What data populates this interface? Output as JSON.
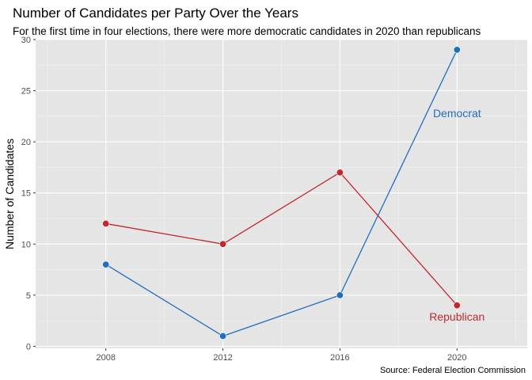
{
  "chart_data": {
    "type": "line",
    "title": "Number of Candidates per Party Over the Years",
    "subtitle": "For the first time in four elections, there were more democratic candidates in 2020 than republicans",
    "xlabel": "",
    "ylabel": "Number of Candidates",
    "caption": "Source: Federal Election Commission",
    "x": [
      2008,
      2012,
      2016,
      2020
    ],
    "xlim": [
      2005.6,
      2022.4
    ],
    "ylim": [
      -0.2,
      30
    ],
    "x_ticks": [
      2008,
      2012,
      2016,
      2020
    ],
    "y_ticks": [
      0,
      5,
      10,
      15,
      20,
      25,
      30
    ],
    "grid": true,
    "legend": "none",
    "series": [
      {
        "name": "Democrat",
        "values": [
          8,
          1,
          5,
          29
        ],
        "color": "#1f6fbf",
        "label": "Democrat",
        "label_at": [
          2020,
          22.8
        ]
      },
      {
        "name": "Republican",
        "values": [
          12,
          10,
          17,
          4
        ],
        "color": "#c0282d",
        "label": "Republican",
        "label_at": [
          2020,
          2.9
        ]
      }
    ]
  }
}
